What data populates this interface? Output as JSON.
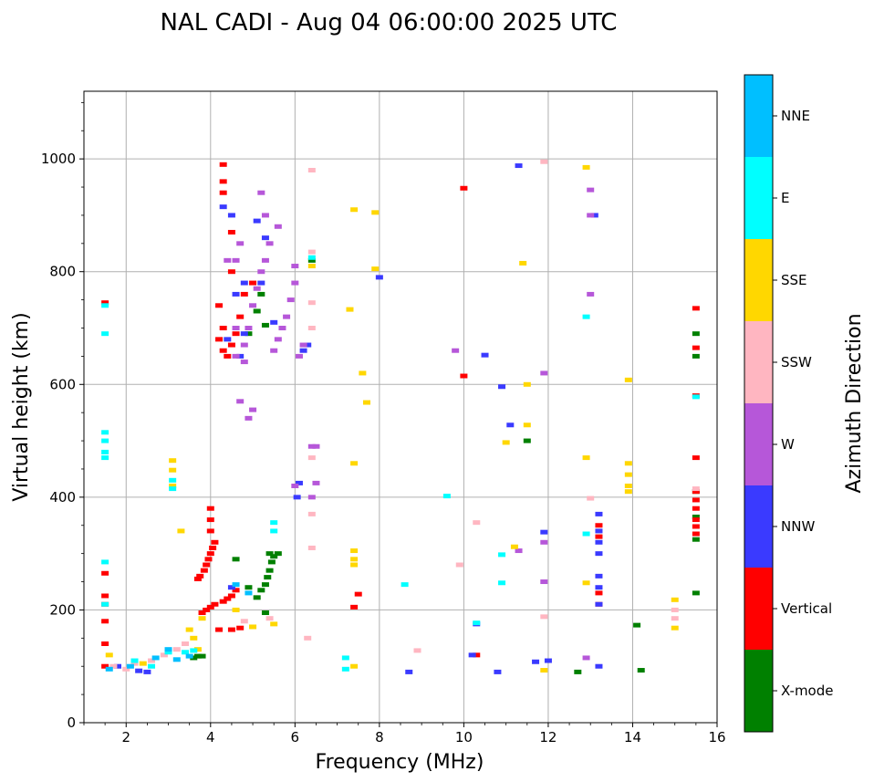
{
  "chart_data": {
    "type": "scatter",
    "title": "NAL CADI - Aug 04 06:00:00 2025 UTC",
    "xlabel": "Frequency (MHz)",
    "ylabel": "Virtual height (km)",
    "xlim": [
      1,
      16
    ],
    "ylim": [
      0,
      1120
    ],
    "xticks": [
      2,
      4,
      6,
      8,
      10,
      12,
      14,
      16
    ],
    "yticks": [
      0,
      200,
      400,
      600,
      800,
      1000
    ],
    "grid": true,
    "colorbar": {
      "label": "Azimuth Direction",
      "categories": [
        "X-mode",
        "Vertical",
        "NNW",
        "W",
        "SSW",
        "SSE",
        "E",
        "NNE"
      ],
      "colors": [
        "#008000",
        "#ff0000",
        "#3a3aff",
        "#b657d9",
        "#ffb6c1",
        "#ffd700",
        "#00ffff",
        "#00bfff"
      ]
    },
    "series": [
      {
        "name": "X-mode",
        "points": [
          [
            3.6,
            115
          ],
          [
            3.7,
            118
          ],
          [
            3.8,
            118
          ],
          [
            4.9,
            240
          ],
          [
            5.1,
            222
          ],
          [
            5.2,
            235
          ],
          [
            5.3,
            245
          ],
          [
            5.35,
            258
          ],
          [
            5.4,
            270
          ],
          [
            5.45,
            285
          ],
          [
            5.5,
            295
          ],
          [
            5.6,
            300
          ],
          [
            5.4,
            300
          ],
          [
            5.3,
            195
          ],
          [
            4.6,
            290
          ],
          [
            5.1,
            730
          ],
          [
            5.2,
            760
          ],
          [
            5.3,
            705
          ],
          [
            4.9,
            690
          ],
          [
            6.4,
            820
          ],
          [
            11.5,
            500
          ],
          [
            12.7,
            90
          ],
          [
            14.1,
            173
          ],
          [
            14.2,
            93
          ],
          [
            15.5,
            230
          ],
          [
            15.5,
            325
          ],
          [
            15.5,
            365
          ],
          [
            15.5,
            410
          ],
          [
            15.5,
            650
          ],
          [
            15.5,
            690
          ]
        ]
      },
      {
        "name": "Vertical",
        "points": [
          [
            1.5,
            100
          ],
          [
            1.5,
            140
          ],
          [
            1.5,
            180
          ],
          [
            1.5,
            210
          ],
          [
            1.5,
            225
          ],
          [
            1.5,
            265
          ],
          [
            1.5,
            745
          ],
          [
            3.8,
            195
          ],
          [
            3.9,
            200
          ],
          [
            4.0,
            205
          ],
          [
            4.1,
            210
          ],
          [
            4.3,
            215
          ],
          [
            4.4,
            220
          ],
          [
            4.5,
            225
          ],
          [
            4.6,
            235
          ],
          [
            3.7,
            255
          ],
          [
            3.75,
            260
          ],
          [
            3.85,
            270
          ],
          [
            3.9,
            280
          ],
          [
            3.95,
            290
          ],
          [
            4.0,
            300
          ],
          [
            4.05,
            310
          ],
          [
            4.1,
            320
          ],
          [
            4.0,
            340
          ],
          [
            4.0,
            360
          ],
          [
            4.0,
            380
          ],
          [
            4.2,
            165
          ],
          [
            4.5,
            165
          ],
          [
            4.7,
            168
          ],
          [
            4.3,
            990
          ],
          [
            4.3,
            960
          ],
          [
            4.3,
            940
          ],
          [
            4.5,
            800
          ],
          [
            4.5,
            870
          ],
          [
            4.2,
            740
          ],
          [
            4.3,
            700
          ],
          [
            4.2,
            680
          ],
          [
            4.3,
            660
          ],
          [
            4.4,
            650
          ],
          [
            4.5,
            670
          ],
          [
            4.6,
            690
          ],
          [
            4.7,
            720
          ],
          [
            4.8,
            760
          ],
          [
            5.0,
            780
          ],
          [
            10.0,
            615
          ],
          [
            10.0,
            948
          ],
          [
            10.3,
            120
          ],
          [
            7.4,
            205
          ],
          [
            7.5,
            228
          ],
          [
            13.2,
            210
          ],
          [
            13.2,
            230
          ],
          [
            13.2,
            330
          ],
          [
            13.2,
            350
          ],
          [
            15.5,
            735
          ],
          [
            15.5,
            665
          ],
          [
            15.5,
            580
          ],
          [
            15.5,
            470
          ],
          [
            15.5,
            410
          ],
          [
            15.5,
            395
          ],
          [
            15.5,
            380
          ],
          [
            15.5,
            360
          ],
          [
            15.5,
            348
          ],
          [
            15.5,
            335
          ]
        ]
      },
      {
        "name": "NNW",
        "points": [
          [
            1.8,
            100
          ],
          [
            2.3,
            92
          ],
          [
            2.5,
            90
          ],
          [
            4.3,
            915
          ],
          [
            4.4,
            680
          ],
          [
            4.5,
            900
          ],
          [
            4.6,
            760
          ],
          [
            4.7,
            650
          ],
          [
            4.8,
            690
          ],
          [
            4.8,
            780
          ],
          [
            5.1,
            890
          ],
          [
            5.2,
            780
          ],
          [
            5.3,
            860
          ],
          [
            5.5,
            710
          ],
          [
            6.2,
            660
          ],
          [
            6.3,
            670
          ],
          [
            4.5,
            240
          ],
          [
            6.1,
            425
          ],
          [
            6.05,
            400
          ],
          [
            8.0,
            790
          ],
          [
            8.7,
            90
          ],
          [
            10.2,
            120
          ],
          [
            10.3,
            175
          ],
          [
            10.5,
            652
          ],
          [
            10.8,
            90
          ],
          [
            10.9,
            596
          ],
          [
            11.1,
            528
          ],
          [
            11.3,
            988
          ],
          [
            11.7,
            108
          ],
          [
            11.9,
            338
          ],
          [
            12.0,
            110
          ],
          [
            13.2,
            100
          ],
          [
            13.2,
            210
          ],
          [
            13.2,
            240
          ],
          [
            13.2,
            260
          ],
          [
            13.2,
            300
          ],
          [
            13.2,
            320
          ],
          [
            13.2,
            340
          ],
          [
            13.2,
            370
          ],
          [
            13.1,
            900
          ]
        ]
      },
      {
        "name": "W",
        "points": [
          [
            4.6,
            650
          ],
          [
            4.6,
            700
          ],
          [
            4.8,
            640
          ],
          [
            4.8,
            670
          ],
          [
            4.9,
            700
          ],
          [
            5.0,
            740
          ],
          [
            5.1,
            770
          ],
          [
            5.2,
            800
          ],
          [
            5.3,
            820
          ],
          [
            5.4,
            850
          ],
          [
            5.5,
            660
          ],
          [
            5.6,
            680
          ],
          [
            5.7,
            700
          ],
          [
            5.8,
            720
          ],
          [
            5.9,
            750
          ],
          [
            6.0,
            780
          ],
          [
            6.0,
            810
          ],
          [
            6.1,
            650
          ],
          [
            6.2,
            670
          ],
          [
            4.7,
            570
          ],
          [
            4.9,
            540
          ],
          [
            5.0,
            555
          ],
          [
            4.4,
            820
          ],
          [
            4.6,
            820
          ],
          [
            4.7,
            850
          ],
          [
            5.3,
            900
          ],
          [
            5.6,
            880
          ],
          [
            5.2,
            940
          ],
          [
            6.4,
            490
          ],
          [
            6.5,
            490
          ],
          [
            6.5,
            425
          ],
          [
            6.4,
            400
          ],
          [
            6.0,
            420
          ],
          [
            9.8,
            660
          ],
          [
            11.3,
            305
          ],
          [
            11.9,
            250
          ],
          [
            11.9,
            320
          ],
          [
            11.9,
            620
          ],
          [
            12.9,
            115
          ],
          [
            13.0,
            760
          ],
          [
            13.0,
            945
          ],
          [
            13.0,
            900
          ]
        ]
      },
      {
        "name": "SSW",
        "points": [
          [
            1.7,
            100
          ],
          [
            2.0,
            95
          ],
          [
            2.2,
            105
          ],
          [
            2.6,
            110
          ],
          [
            2.9,
            120
          ],
          [
            3.2,
            130
          ],
          [
            3.4,
            140
          ],
          [
            4.8,
            180
          ],
          [
            5.4,
            185
          ],
          [
            6.4,
            310
          ],
          [
            6.4,
            370
          ],
          [
            6.4,
            470
          ],
          [
            6.4,
            700
          ],
          [
            6.4,
            745
          ],
          [
            6.4,
            835
          ],
          [
            6.4,
            980
          ],
          [
            6.3,
            150
          ],
          [
            8.9,
            128
          ],
          [
            9.9,
            280
          ],
          [
            10.3,
            355
          ],
          [
            11.9,
            188
          ],
          [
            11.9,
            995
          ],
          [
            13.0,
            398
          ],
          [
            15.0,
            185
          ],
          [
            15.0,
            200
          ],
          [
            15.5,
            415
          ]
        ]
      },
      {
        "name": "SSE",
        "points": [
          [
            1.6,
            120
          ],
          [
            2.4,
            105
          ],
          [
            3.1,
            465
          ],
          [
            3.1,
            448
          ],
          [
            3.1,
            420
          ],
          [
            3.3,
            340
          ],
          [
            3.5,
            165
          ],
          [
            3.6,
            150
          ],
          [
            3.7,
            130
          ],
          [
            3.8,
            185
          ],
          [
            4.6,
            200
          ],
          [
            5.0,
            170
          ],
          [
            5.5,
            175
          ],
          [
            6.4,
            810
          ],
          [
            7.3,
            733
          ],
          [
            7.4,
            910
          ],
          [
            7.4,
            460
          ],
          [
            7.4,
            305
          ],
          [
            7.4,
            290
          ],
          [
            7.4,
            280
          ],
          [
            7.4,
            100
          ],
          [
            7.6,
            620
          ],
          [
            7.7,
            568
          ],
          [
            7.9,
            805
          ],
          [
            7.9,
            905
          ],
          [
            11.0,
            497
          ],
          [
            11.2,
            312
          ],
          [
            11.4,
            815
          ],
          [
            11.5,
            528
          ],
          [
            11.5,
            600
          ],
          [
            11.9,
            93
          ],
          [
            12.9,
            248
          ],
          [
            12.9,
            470
          ],
          [
            12.9,
            985
          ],
          [
            13.9,
            460
          ],
          [
            13.9,
            440
          ],
          [
            13.9,
            420
          ],
          [
            13.9,
            410
          ],
          [
            13.9,
            608
          ],
          [
            15.0,
            218
          ],
          [
            15.0,
            168
          ]
        ]
      },
      {
        "name": "E",
        "points": [
          [
            1.5,
            210
          ],
          [
            1.5,
            285
          ],
          [
            1.5,
            470
          ],
          [
            1.5,
            480
          ],
          [
            1.5,
            500
          ],
          [
            1.5,
            515
          ],
          [
            1.5,
            690
          ],
          [
            1.5,
            740
          ],
          [
            2.2,
            110
          ],
          [
            2.6,
            100
          ],
          [
            3.1,
            430
          ],
          [
            3.1,
            415
          ],
          [
            3.0,
            125
          ],
          [
            3.4,
            125
          ],
          [
            3.6,
            128
          ],
          [
            5.5,
            340
          ],
          [
            5.5,
            355
          ],
          [
            6.4,
            825
          ],
          [
            7.2,
            95
          ],
          [
            7.2,
            115
          ],
          [
            8.6,
            245
          ],
          [
            9.6,
            402
          ],
          [
            10.3,
            177
          ],
          [
            10.9,
            248
          ],
          [
            10.9,
            298
          ],
          [
            12.9,
            335
          ],
          [
            12.9,
            720
          ],
          [
            15.5,
            578
          ]
        ]
      },
      {
        "name": "NNE",
        "points": [
          [
            1.6,
            95
          ],
          [
            2.1,
            100
          ],
          [
            2.7,
            115
          ],
          [
            3.0,
            130
          ],
          [
            3.2,
            112
          ],
          [
            3.5,
            118
          ],
          [
            4.6,
            245
          ],
          [
            4.9,
            230
          ]
        ]
      }
    ]
  }
}
